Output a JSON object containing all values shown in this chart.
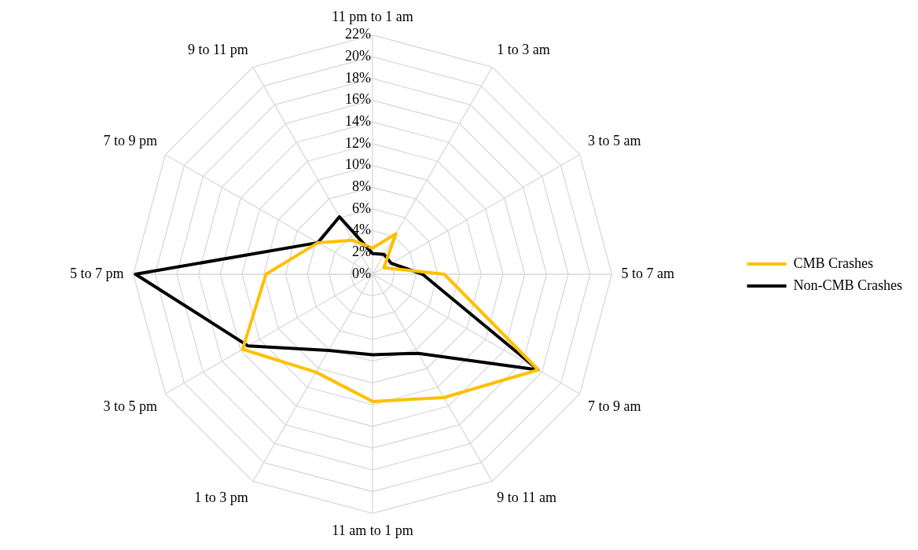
{
  "chart_data": {
    "type": "radar",
    "categories": [
      "11 pm to 1 am",
      "1 to 3 am",
      "3 to 5 am",
      "5 to 7 am",
      "7 to 9 am",
      "9 to 11 am",
      "11 am to 1 pm",
      "1 to 3 pm",
      "3 to 5 pm",
      "5 to 7 pm",
      "7 to 9 pm",
      "9 to 11 pm"
    ],
    "series": [
      {
        "name": "CMB Crashes",
        "color": "#ffc000",
        "values": [
          2.4,
          4.3,
          1.2,
          6.6,
          17.6,
          13.1,
          11.7,
          10.4,
          13.8,
          9.8,
          5.8,
          3.6
        ]
      },
      {
        "name": "Non-CMB Crashes",
        "color": "#000000",
        "values": [
          1.9,
          2.1,
          2.0,
          4.6,
          17.6,
          8.4,
          7.4,
          8.1,
          13.2,
          21.8,
          5.8,
          6.1
        ]
      }
    ],
    "ylim": [
      0,
      22
    ],
    "yticks": [
      {
        "value": 0,
        "label": "0%"
      },
      {
        "value": 2,
        "label": "2%"
      },
      {
        "value": 4,
        "label": "4%"
      },
      {
        "value": 6,
        "label": "6%"
      },
      {
        "value": 8,
        "label": "8%"
      },
      {
        "value": 10,
        "label": "10%"
      },
      {
        "value": 12,
        "label": "12%"
      },
      {
        "value": 14,
        "label": "14%"
      },
      {
        "value": 16,
        "label": "16%"
      },
      {
        "value": 18,
        "label": "18%"
      },
      {
        "value": 20,
        "label": "20%"
      },
      {
        "value": 22,
        "label": "22%"
      }
    ],
    "grid": true,
    "legend": "right",
    "marker": "none"
  }
}
